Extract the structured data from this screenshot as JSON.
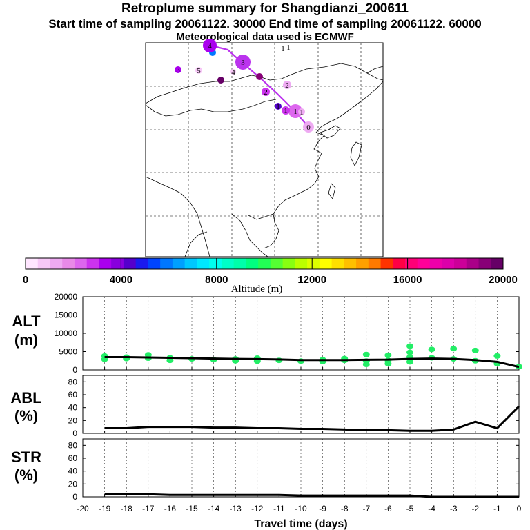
{
  "header": {
    "title": "Retroplume summary for Shangdianzi_200611",
    "sampling": "Start time of sampling 20061122. 30000     End time of sampling 20061122. 60000",
    "met": "Meteorological data used is ECMWF"
  },
  "colorbar": {
    "ticks": [
      "0",
      "4000",
      "8000",
      "12000",
      "16000",
      "20000"
    ],
    "label": "Altitude (m)",
    "colors": [
      "#ffe6ff",
      "#f7c8f7",
      "#eeaaf2",
      "#e88ae8",
      "#dd66ee",
      "#cc33ee",
      "#aa00ee",
      "#8800dd",
      "#5500cc",
      "#1a1aee",
      "#0044ff",
      "#0077ff",
      "#00a0ff",
      "#00c8ff",
      "#00e8ff",
      "#00ffee",
      "#00ffc8",
      "#00ffaa",
      "#00ff80",
      "#22ff55",
      "#55ff33",
      "#88ff11",
      "#bbff00",
      "#ddff00",
      "#ffff00",
      "#ffe000",
      "#ffc000",
      "#ffa000",
      "#ff7a00",
      "#ff3300",
      "#ff0044",
      "#ff0077",
      "#ff0099",
      "#ee00aa",
      "#dd00aa",
      "#cc0099",
      "#aa0088",
      "#880077",
      "#660066"
    ]
  },
  "map_data": {
    "trajectory_labels": [
      "0",
      "1",
      "1",
      "2",
      "2",
      "3",
      "4",
      "4",
      "5",
      "1",
      "1",
      "3",
      "1",
      "1"
    ]
  },
  "chart_data": [
    {
      "type": "line",
      "title": "ALT (m)",
      "panel_label": "ALT",
      "panel_unit": "(m)",
      "x": [
        -19,
        -18,
        -17,
        -16,
        -15,
        -14,
        -13,
        -12,
        -11,
        -10,
        -9,
        -8,
        -7,
        -6,
        -5,
        -4,
        -3,
        -2,
        -1,
        0
      ],
      "series": [
        {
          "name": "mean altitude",
          "values": [
            3500,
            3500,
            3400,
            3300,
            3200,
            3100,
            3000,
            2950,
            2850,
            2700,
            2700,
            2700,
            2750,
            2800,
            3000,
            3100,
            3000,
            2700,
            2200,
            800
          ]
        }
      ],
      "scatter": {
        "x": [
          -19,
          -19,
          -18,
          -18,
          -17,
          -17,
          -16,
          -16,
          -15,
          -14,
          -13,
          -13,
          -12,
          -12,
          -11,
          -10,
          -9,
          -9,
          -8,
          -8,
          -7,
          -7,
          -7,
          -6,
          -6,
          -6,
          -5,
          -5,
          -5,
          -5,
          -4,
          -4,
          -3,
          -3,
          -2,
          -2,
          -1,
          -1,
          0
        ],
        "y": [
          3800,
          2900,
          3500,
          3100,
          4100,
          3200,
          3300,
          2600,
          3000,
          2800,
          3000,
          2500,
          3200,
          2400,
          2600,
          2400,
          2800,
          2300,
          2600,
          3100,
          1500,
          2400,
          4200,
          1700,
          2600,
          4000,
          4800,
          3500,
          2200,
          6500,
          5600,
          3300,
          5800,
          3000,
          5300,
          2500,
          3800,
          1700,
          900
        ]
      },
      "ylim": [
        0,
        20000
      ],
      "yticks": [
        0,
        5000,
        10000,
        15000,
        20000
      ]
    },
    {
      "type": "line",
      "title": "ABL (%)",
      "panel_label": "ABL",
      "panel_unit": "(%)",
      "x": [
        -19,
        -18,
        -17,
        -16,
        -15,
        -14,
        -13,
        -12,
        -11,
        -10,
        -9,
        -8,
        -7,
        -6,
        -5,
        -4,
        -3,
        -2,
        -1,
        0
      ],
      "series": [
        {
          "name": "ABL fraction",
          "values": [
            8,
            8,
            10,
            10,
            10,
            9,
            9,
            8,
            8,
            7,
            7,
            6,
            5,
            5,
            4,
            4,
            6,
            18,
            8,
            42
          ]
        }
      ],
      "ylim": [
        0,
        90
      ],
      "yticks": [
        0,
        20,
        40,
        60,
        80
      ]
    },
    {
      "type": "line",
      "title": "STR (%)",
      "panel_label": "STR",
      "panel_unit": "(%)",
      "x": [
        -19,
        -18,
        -17,
        -16,
        -15,
        -14,
        -13,
        -12,
        -11,
        -10,
        -9,
        -8,
        -7,
        -6,
        -5,
        -4,
        -3,
        -2,
        -1,
        0
      ],
      "series": [
        {
          "name": "stratosphere fraction",
          "values": [
            4,
            4,
            4,
            3,
            3,
            3,
            3,
            3,
            3,
            2,
            2,
            2,
            2,
            2,
            2,
            0,
            0,
            0,
            0,
            0
          ]
        }
      ],
      "ylim": [
        0,
        90
      ],
      "yticks": [
        0,
        20,
        40,
        60,
        80
      ],
      "xlabel": "Travel time (days)",
      "xticks": [
        -20,
        -19,
        -18,
        -17,
        -16,
        -15,
        -14,
        -13,
        -12,
        -11,
        -10,
        -9,
        -8,
        -7,
        -6,
        -5,
        -4,
        -3,
        -2,
        -1,
        0
      ]
    }
  ]
}
